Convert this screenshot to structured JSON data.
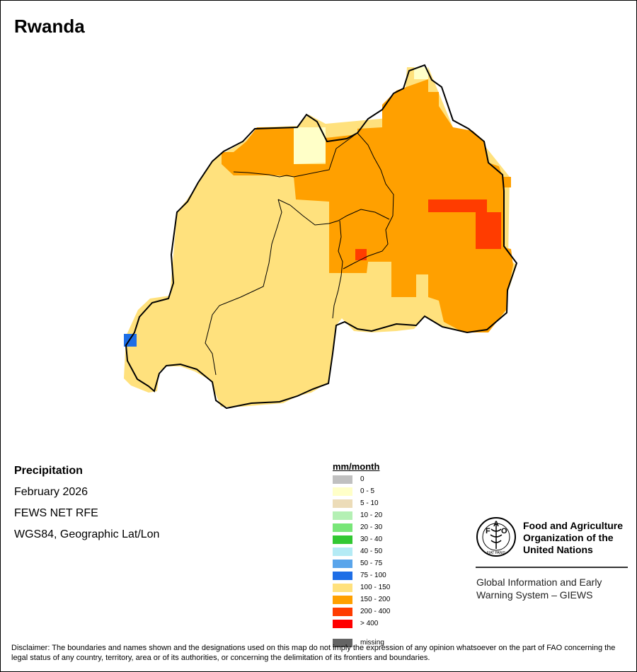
{
  "map": {
    "title": "Rwanda",
    "variable": "Precipitation",
    "period": "February 2026",
    "source": "FEWS NET RFE",
    "projection": "WGS84, Geographic Lat/Lon"
  },
  "legend": {
    "unit": "mm/month",
    "classes": [
      {
        "label": "0",
        "color": "#c0c0c0"
      },
      {
        "label": "0 - 5",
        "color": "#ffffc8"
      },
      {
        "label": "5 - 10",
        "color": "#ecdcb8"
      },
      {
        "label": "10 - 20",
        "color": "#b4f0b4"
      },
      {
        "label": "20 - 30",
        "color": "#78e678"
      },
      {
        "label": "30 - 40",
        "color": "#32c832"
      },
      {
        "label": "40 - 50",
        "color": "#b4ebf5"
      },
      {
        "label": "50 - 75",
        "color": "#5aa5eb"
      },
      {
        "label": "75 - 100",
        "color": "#1e6ee6"
      },
      {
        "label": "100 - 150",
        "color": "#ffe17d"
      },
      {
        "label": "150 - 200",
        "color": "#ffa000"
      },
      {
        "label": "200 - 400",
        "color": "#ff3c00"
      },
      {
        "label": "> 400",
        "color": "#ff0000"
      },
      {
        "label": "missing",
        "color": "#646464"
      }
    ]
  },
  "organization": {
    "name": "Food and Agriculture Organization of the United Nations",
    "logo_text": "FAO",
    "logo_motto": "FIAT PANIS",
    "system": "Global Information and Early Warning System – GIEWS"
  },
  "disclaimer": "Disclaimer: The boundaries and names shown and the designations used on this map do not imply the expression of any opinion whatsoever on the part of FAO concerning the legal status of any country, territory, area or of its authorities, or concerning the delimitation of its frontiers and boundaries."
}
